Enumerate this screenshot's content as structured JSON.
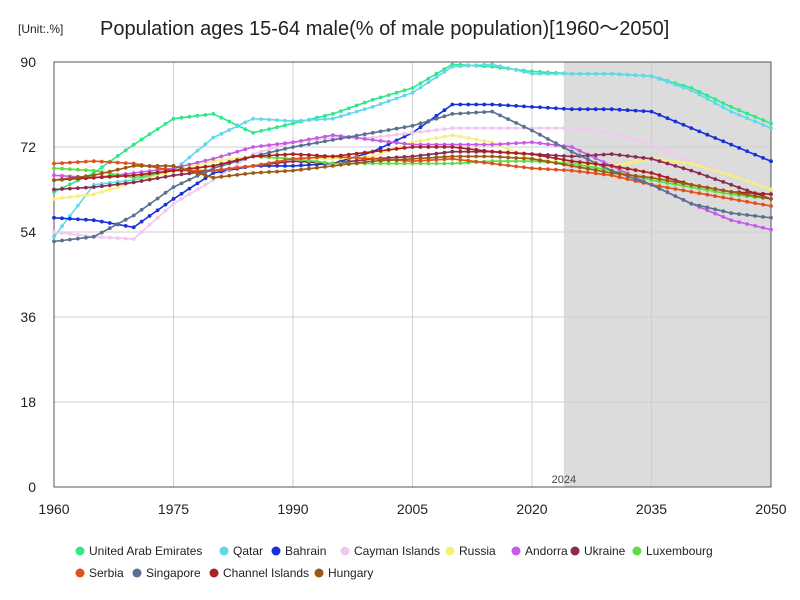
{
  "chart_data": {
    "type": "line",
    "title": "Population ages 15-64 male(% of male population)[1960～2050]",
    "unit_label": "[Unit:.%]",
    "xlabel": "",
    "ylabel": "",
    "xlim": [
      1960,
      2050
    ],
    "ylim": [
      0,
      90
    ],
    "x_ticks": [
      1960,
      1975,
      1990,
      2005,
      2020,
      2035,
      2050
    ],
    "y_ticks": [
      0,
      18,
      36,
      54,
      72,
      90
    ],
    "forecast_start": 2024,
    "forecast_label": "2024",
    "x": [
      1960,
      1965,
      1970,
      1975,
      1980,
      1985,
      1990,
      1995,
      2000,
      2005,
      2010,
      2015,
      2020,
      2025,
      2030,
      2035,
      2040,
      2045,
      2050
    ],
    "series": [
      {
        "name": "United Arab Emirates",
        "color": "#2ee88a",
        "values": [
          62.5,
          66.5,
          72.5,
          78.0,
          79.0,
          75.0,
          77.0,
          79.0,
          82.0,
          84.5,
          89.5,
          89.0,
          88.0,
          87.5,
          87.5,
          87.0,
          84.5,
          80.5,
          77.0
        ]
      },
      {
        "name": "Qatar",
        "color": "#62d8ee",
        "values": [
          53.0,
          64.0,
          65.0,
          67.0,
          74.0,
          78.0,
          77.5,
          78.0,
          80.5,
          83.5,
          89.0,
          89.5,
          87.5,
          87.5,
          87.5,
          87.0,
          84.0,
          79.5,
          76.0
        ]
      },
      {
        "name": "Bahrain",
        "color": "#1830d8",
        "values": [
          57.0,
          56.5,
          55.0,
          61.0,
          66.5,
          68.0,
          68.0,
          68.5,
          71.0,
          75.0,
          81.0,
          81.0,
          80.5,
          80.0,
          80.0,
          79.5,
          76.0,
          72.5,
          69.0
        ]
      },
      {
        "name": "Cayman Islands",
        "color": "#f2c8f0",
        "values": [
          54.0,
          53.0,
          52.5,
          60.0,
          65.0,
          70.5,
          73.0,
          74.0,
          74.0,
          75.0,
          76.0,
          76.0,
          76.0,
          76.0,
          75.0,
          72.5,
          69.0,
          66.0,
          63.0
        ]
      },
      {
        "name": "Russia",
        "color": "#f6f07a",
        "values": [
          61.0,
          62.0,
          64.5,
          67.0,
          69.0,
          70.0,
          69.5,
          69.5,
          70.0,
          73.0,
          74.5,
          73.0,
          69.5,
          68.5,
          68.0,
          69.5,
          68.5,
          66.0,
          63.0
        ]
      },
      {
        "name": "Andorra",
        "color": "#c85ae8",
        "values": [
          66.0,
          65.5,
          66.5,
          67.5,
          69.5,
          72.0,
          73.0,
          74.5,
          73.5,
          72.5,
          72.5,
          72.5,
          73.0,
          72.0,
          68.0,
          64.0,
          60.0,
          56.5,
          54.5
        ]
      },
      {
        "name": "Ukraine",
        "color": "#8a2c52",
        "values": [
          63.0,
          63.5,
          64.5,
          66.0,
          67.0,
          68.0,
          69.0,
          68.5,
          69.5,
          70.0,
          71.0,
          71.0,
          70.5,
          70.0,
          70.5,
          69.5,
          67.0,
          64.0,
          61.0
        ]
      },
      {
        "name": "Luxembourg",
        "color": "#5ade40",
        "values": [
          67.5,
          67.0,
          65.5,
          67.0,
          68.0,
          70.0,
          69.5,
          68.5,
          68.5,
          68.5,
          68.5,
          69.0,
          69.0,
          68.5,
          67.0,
          65.0,
          63.5,
          62.0,
          61.0
        ]
      },
      {
        "name": "Serbia",
        "color": "#e0501c",
        "values": [
          68.5,
          69.0,
          68.5,
          67.0,
          67.0,
          68.0,
          69.5,
          70.0,
          69.5,
          69.0,
          69.5,
          68.5,
          67.5,
          67.0,
          66.0,
          64.0,
          62.5,
          61.0,
          59.5
        ]
      },
      {
        "name": "Singapore",
        "color": "#5a7090",
        "values": [
          52.0,
          53.0,
          57.5,
          63.5,
          67.5,
          70.0,
          72.0,
          73.5,
          75.0,
          76.5,
          79.0,
          79.5,
          75.5,
          71.0,
          67.0,
          64.0,
          60.0,
          58.0,
          57.0
        ]
      },
      {
        "name": "Channel Islands",
        "color": "#a82020",
        "values": [
          65.0,
          65.5,
          66.0,
          67.0,
          68.0,
          70.0,
          70.5,
          70.0,
          71.0,
          72.0,
          72.0,
          71.0,
          70.5,
          69.0,
          68.0,
          66.5,
          64.0,
          62.5,
          62.0
        ]
      },
      {
        "name": "Hungary",
        "color": "#9a5a14",
        "values": [
          65.0,
          66.0,
          68.0,
          68.0,
          65.5,
          66.5,
          67.0,
          68.0,
          69.0,
          69.5,
          70.0,
          70.0,
          69.5,
          68.0,
          66.5,
          65.5,
          64.0,
          62.5,
          61.0
        ]
      }
    ]
  }
}
